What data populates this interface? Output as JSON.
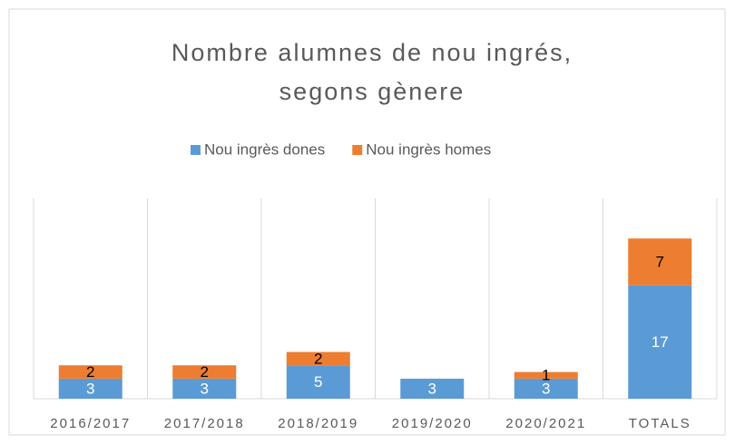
{
  "chart_data": {
    "type": "stacked_bar",
    "title": [
      "Nombre alumnes de nou ingrés,",
      "segons gènere"
    ],
    "categories": [
      "2016/2017",
      "2017/2018",
      "2018/2019",
      "2019/2020",
      "2020/2021",
      "TOTALS"
    ],
    "series": [
      {
        "name": "Nou ingrès dones",
        "color": "#5b9bd5",
        "values": [
          3,
          3,
          5,
          3,
          3,
          17
        ]
      },
      {
        "name": "Nou ingrès homes",
        "color": "#ed7d31",
        "values": [
          2,
          2,
          2,
          0,
          1,
          7
        ]
      }
    ],
    "ylim": [
      0,
      30
    ],
    "legend": "top"
  }
}
